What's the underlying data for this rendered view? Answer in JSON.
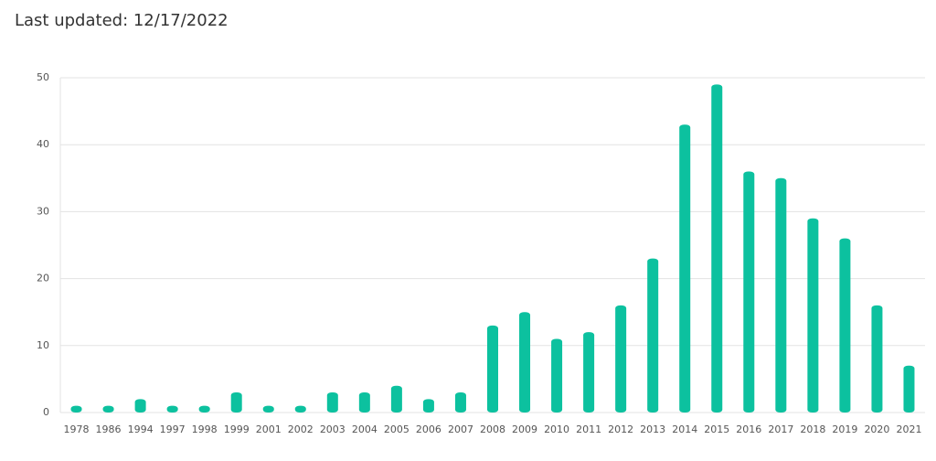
{
  "chart_data": {
    "type": "bar",
    "title": "Last updated: 12/17/2022",
    "categories": [
      "1978",
      "1986",
      "1994",
      "1997",
      "1998",
      "1999",
      "2001",
      "2002",
      "2003",
      "2004",
      "2005",
      "2006",
      "2007",
      "2008",
      "2009",
      "2010",
      "2011",
      "2012",
      "2013",
      "2014",
      "2015",
      "2016",
      "2017",
      "2018",
      "2019",
      "2020",
      "2021"
    ],
    "values": [
      1,
      1,
      2,
      1,
      1,
      3,
      1,
      1,
      3,
      3,
      4,
      2,
      3,
      13,
      15,
      11,
      12,
      16,
      23,
      43,
      49,
      36,
      35,
      29,
      26,
      16,
      7
    ],
    "color": "#0cc19f",
    "ylim": [
      0,
      50
    ],
    "yticks": [
      0,
      10,
      20,
      30,
      40,
      50
    ],
    "grid": true
  }
}
